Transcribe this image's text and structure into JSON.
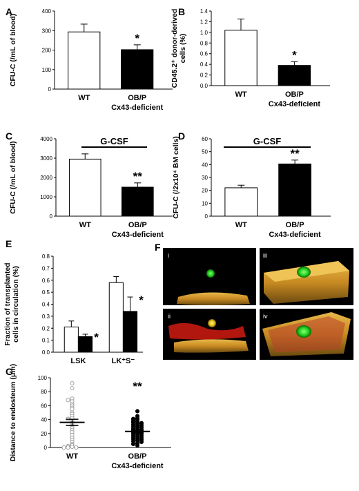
{
  "figure": {
    "panel_letters": {
      "a": "A",
      "b": "B",
      "c": "C",
      "d": "D",
      "e": "E",
      "f": "F",
      "g": "G"
    },
    "micrograph_labels": [
      "i",
      "iii",
      "ii",
      "iv"
    ],
    "gcsf_label": "G-CSF"
  },
  "colors": {
    "wt_bar": "#ffffff",
    "deficient_bar": "#000000",
    "axis": "#000000",
    "wt_dot": "#9a9a9a",
    "deficient_dot": "#000000"
  },
  "chart_data": [
    {
      "id": "A",
      "type": "bar",
      "categories": [
        "WT",
        "OB/P Cx43-deficient"
      ],
      "category_lines": [
        [
          "WT"
        ],
        [
          "OB/P",
          "Cx43-deficient"
        ]
      ],
      "values": [
        293,
        202
      ],
      "errors": [
        40,
        25
      ],
      "significance": [
        "",
        "*"
      ],
      "ylabel": "CFU-C (/mL of blood)",
      "ylim": [
        0,
        400
      ],
      "yticks": [
        0,
        100,
        200,
        300,
        400
      ]
    },
    {
      "id": "B",
      "type": "bar",
      "categories": [
        "WT",
        "OB/P Cx43-deficient"
      ],
      "category_lines": [
        [
          "WT"
        ],
        [
          "OB/P",
          "Cx43-deficient"
        ]
      ],
      "values": [
        1.04,
        0.38
      ],
      "errors": [
        0.21,
        0.07
      ],
      "significance": [
        "",
        "*"
      ],
      "ylabel": "CD45.2⁺ donor-derived cells (%)",
      "ylabel_lines": [
        "CD45.2⁺ donor-derived",
        "cells (%)"
      ],
      "ylim": [
        0,
        1.4
      ],
      "yticks": [
        0,
        0.2,
        0.4,
        0.6,
        0.8,
        1.0,
        1.2,
        1.4
      ]
    },
    {
      "id": "C",
      "type": "bar",
      "title": "G-CSF",
      "categories": [
        "WT",
        "OB/P Cx43-deficient"
      ],
      "category_lines": [
        [
          "WT"
        ],
        [
          "OB/P",
          "Cx43-deficient"
        ]
      ],
      "values": [
        2950,
        1500
      ],
      "errors": [
        270,
        220
      ],
      "significance": [
        "",
        "**"
      ],
      "ylabel": "CFU-C (/mL of blood)",
      "ylim": [
        0,
        4000
      ],
      "yticks": [
        0,
        1000,
        2000,
        3000,
        4000
      ]
    },
    {
      "id": "D",
      "type": "bar",
      "title": "G-CSF",
      "categories": [
        "WT",
        "OB/P Cx43-deficient"
      ],
      "category_lines": [
        [
          "WT"
        ],
        [
          "OB/P",
          "Cx43-deficient"
        ]
      ],
      "values": [
        22,
        40.5
      ],
      "errors": [
        2,
        3
      ],
      "significance": [
        "",
        "**"
      ],
      "ylabel": "CFU-C (/2x10⁴ BM cells)",
      "ylim": [
        0,
        60
      ],
      "yticks": [
        0,
        10,
        20,
        30,
        40,
        50,
        60
      ]
    },
    {
      "id": "E",
      "type": "bar",
      "categories": [
        "LSK",
        "LK⁺S⁻"
      ],
      "series": [
        {
          "values": [
            0.21,
            0.58
          ],
          "errors": [
            0.05,
            0.05
          ],
          "significance": [
            "",
            ""
          ]
        },
        {
          "values": [
            0.13,
            0.34
          ],
          "errors": [
            0.02,
            0.12
          ],
          "significance": [
            "*",
            "*"
          ]
        }
      ],
      "ylabel": "Fraction of transplanted cells in circulation (%)",
      "ylabel_lines": [
        "Fraction of transplanted",
        "cells in circulation (%)"
      ],
      "ylim": [
        0,
        0.8
      ],
      "yticks": [
        0,
        0.1,
        0.2,
        0.3,
        0.4,
        0.5,
        0.6,
        0.7,
        0.8
      ]
    },
    {
      "id": "G",
      "type": "scatter",
      "categories": [
        "WT",
        "OB/P Cx43-deficient"
      ],
      "category_lines": [
        [
          "WT"
        ],
        [
          "OB/P",
          "Cx43-deficient"
        ]
      ],
      "groups": [
        {
          "values": [
            92,
            85,
            70,
            68,
            66,
            62,
            60,
            57,
            55,
            50,
            48,
            45,
            42,
            41,
            38,
            35,
            34,
            30,
            28,
            25,
            22,
            18,
            14,
            11,
            8,
            5,
            3,
            2,
            1,
            0,
            0,
            0
          ],
          "mean": 36,
          "sem": 4.5
        },
        {
          "values": [
            52,
            45,
            42,
            41,
            40,
            38,
            37,
            36,
            35,
            34,
            33,
            32,
            31,
            30,
            29,
            28,
            27,
            26,
            25,
            24,
            23,
            22,
            21,
            20,
            19,
            18,
            17,
            16,
            15,
            14,
            13,
            12,
            11,
            10,
            9,
            8,
            6,
            5,
            3
          ],
          "mean": 23,
          "sem": 2
        }
      ],
      "significance": [
        "",
        "**"
      ],
      "ylabel": "Distance to endosteum (μm)",
      "ylim": [
        0,
        100
      ],
      "yticks": [
        0,
        20,
        40,
        60,
        80,
        100
      ]
    }
  ]
}
